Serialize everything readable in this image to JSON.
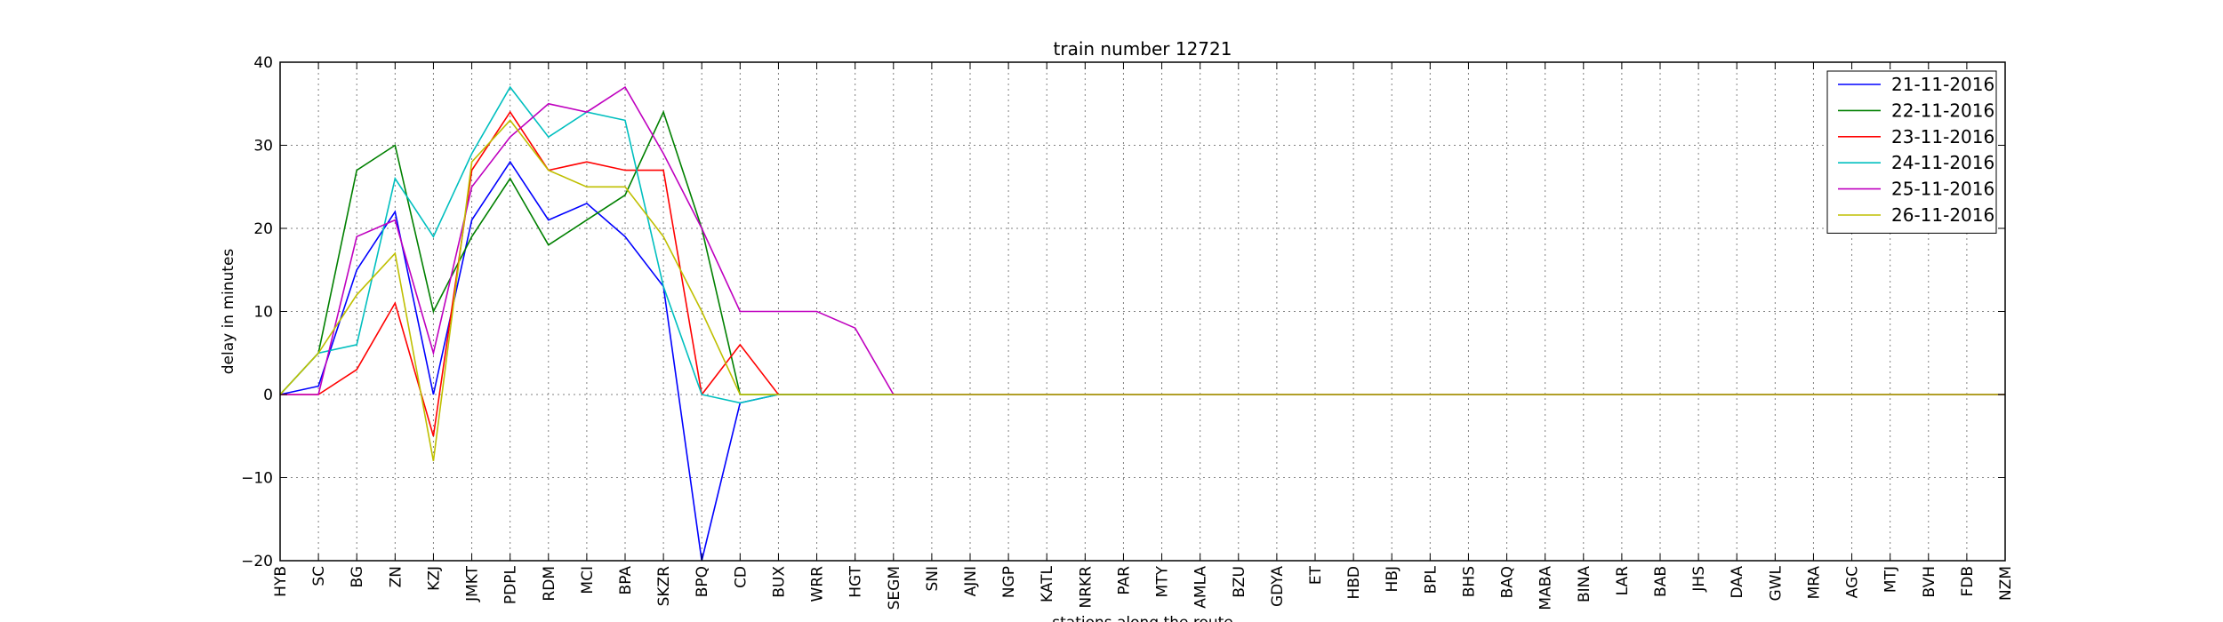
{
  "chart_data": {
    "type": "line",
    "title": "train number 12721",
    "xlabel": "stations along the route",
    "ylabel": "delay in minutes",
    "ylim": [
      -20,
      40
    ],
    "yticks": [
      -20,
      -10,
      0,
      10,
      20,
      30,
      40
    ],
    "grid": true,
    "legend_position": "top-right",
    "categories": [
      "HYB",
      "SC",
      "BG",
      "ZN",
      "KZJ",
      "JMKT",
      "PDPL",
      "RDM",
      "MCI",
      "BPA",
      "SKZR",
      "BPQ",
      "CD",
      "BUX",
      "WRR",
      "HGT",
      "SEGM",
      "SNI",
      "AJNI",
      "NGP",
      "KATL",
      "NRKR",
      "PAR",
      "MTY",
      "AMLA",
      "BZU",
      "GDYA",
      "ET",
      "HBD",
      "HBJ",
      "BPL",
      "BHS",
      "BAQ",
      "MABA",
      "BINA",
      "LAR",
      "BAB",
      "JHS",
      "DAA",
      "GWL",
      "MRA",
      "AGC",
      "MTJ",
      "BVH",
      "FDB",
      "NZM"
    ],
    "series": [
      {
        "name": "21-11-2016",
        "color": "#0000ff",
        "values": [
          0,
          1,
          15,
          22,
          0,
          21,
          28,
          21,
          23,
          19,
          13,
          -20,
          -1,
          0,
          0,
          0,
          0,
          0,
          0,
          0,
          0,
          0,
          0,
          0,
          0,
          0,
          0,
          0,
          0,
          0,
          0,
          0,
          0,
          0,
          0,
          0,
          0,
          0,
          0,
          0,
          0,
          0,
          0,
          0,
          0,
          0
        ]
      },
      {
        "name": "22-11-2016",
        "color": "#008000",
        "values": [
          0,
          5,
          27,
          30,
          10,
          19,
          26,
          18,
          21,
          24,
          34,
          20,
          0,
          0,
          0,
          0,
          0,
          0,
          0,
          0,
          0,
          0,
          0,
          0,
          0,
          0,
          0,
          0,
          0,
          0,
          0,
          0,
          0,
          0,
          0,
          0,
          0,
          0,
          0,
          0,
          0,
          0,
          0,
          0,
          0,
          0
        ]
      },
      {
        "name": "23-11-2016",
        "color": "#ff0000",
        "values": [
          0,
          0,
          3,
          11,
          -5,
          27,
          34,
          27,
          28,
          27,
          27,
          0,
          6,
          0,
          0,
          0,
          0,
          0,
          0,
          0,
          0,
          0,
          0,
          0,
          0,
          0,
          0,
          0,
          0,
          0,
          0,
          0,
          0,
          0,
          0,
          0,
          0,
          0,
          0,
          0,
          0,
          0,
          0,
          0,
          0,
          0
        ]
      },
      {
        "name": "24-11-2016",
        "color": "#00bfbf",
        "values": [
          0,
          5,
          6,
          26,
          19,
          29,
          37,
          31,
          34,
          33,
          13,
          0,
          -1,
          0,
          0,
          0,
          0,
          0,
          0,
          0,
          0,
          0,
          0,
          0,
          0,
          0,
          0,
          0,
          0,
          0,
          0,
          0,
          0,
          0,
          0,
          0,
          0,
          0,
          0,
          0,
          0,
          0,
          0,
          0,
          0,
          0
        ]
      },
      {
        "name": "25-11-2016",
        "color": "#bf00bf",
        "values": [
          0,
          0,
          19,
          21,
          5,
          25,
          31,
          35,
          34,
          37,
          29,
          20,
          10,
          10,
          10,
          8,
          0,
          0,
          0,
          0,
          0,
          0,
          0,
          0,
          0,
          0,
          0,
          0,
          0,
          0,
          0,
          0,
          0,
          0,
          0,
          0,
          0,
          0,
          0,
          0,
          0,
          0,
          0,
          0,
          0,
          0
        ]
      },
      {
        "name": "26-11-2016",
        "color": "#bfbf00",
        "values": [
          0,
          5,
          12,
          17,
          -8,
          28,
          33,
          27,
          25,
          25,
          19,
          10,
          0,
          0,
          0,
          0,
          0,
          0,
          0,
          0,
          0,
          0,
          0,
          0,
          0,
          0,
          0,
          0,
          0,
          0,
          0,
          0,
          0,
          0,
          0,
          0,
          0,
          0,
          0,
          0,
          0,
          0,
          0,
          0,
          0,
          0
        ]
      }
    ]
  }
}
